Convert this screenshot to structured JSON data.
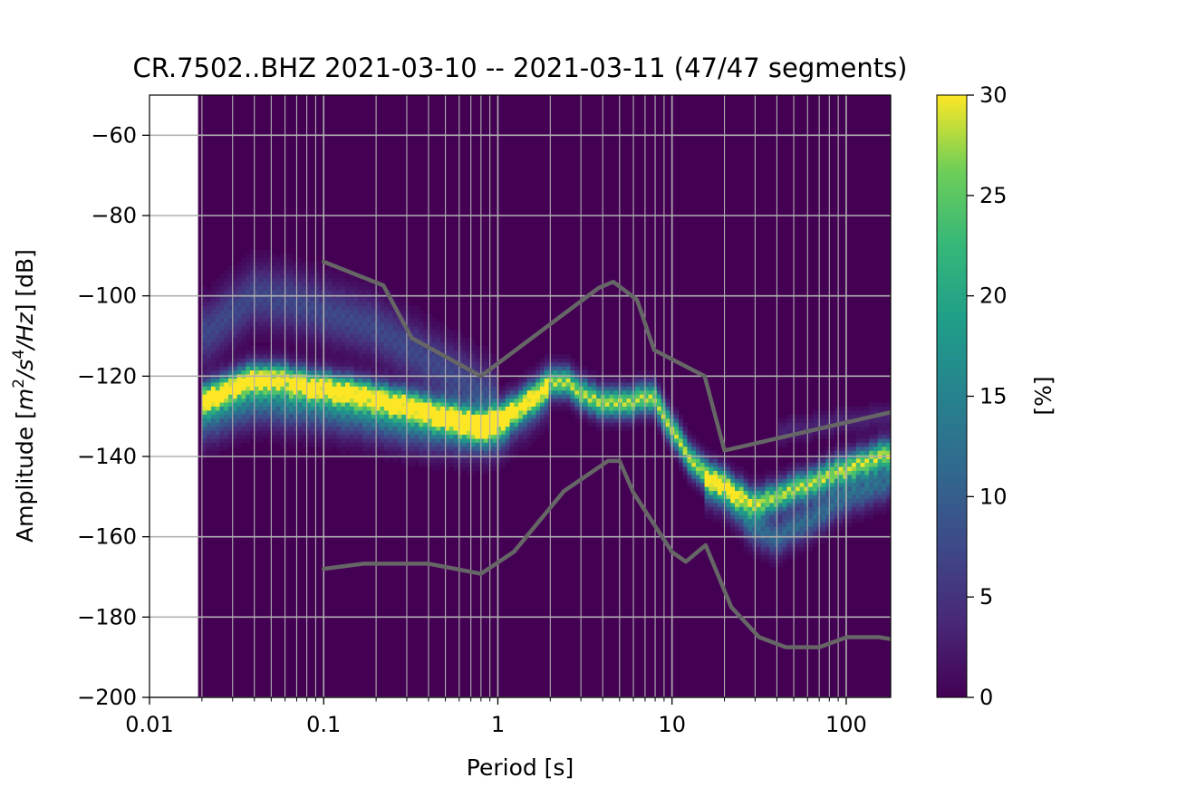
{
  "chart_data": {
    "type": "heatmap",
    "title": "CR.7502..BHZ   2021-03-10 -- 2021-03-11  (47/47 segments)",
    "xlabel": "Period [s]",
    "ylabel": "Amplitude [m²/s⁴/Hz] [dB]",
    "ylabel_parts": {
      "prefix": "Amplitude [",
      "m": "m",
      "exp2": "2",
      "slash_s": "/s",
      "exp4": "4",
      "hz": "/Hz",
      "suffix": "] [dB]"
    },
    "x_scale": "log",
    "xlim": [
      0.01,
      180
    ],
    "ylim": [
      -200,
      -50
    ],
    "x_ticks": [
      0.01,
      0.1,
      1,
      10,
      100
    ],
    "x_tick_labels": [
      "0.01",
      "0.1",
      "1",
      "10",
      "100"
    ],
    "y_ticks": [
      -200,
      -180,
      -160,
      -140,
      -120,
      -100,
      -80,
      -60
    ],
    "y_tick_labels": [
      "−200",
      "−180",
      "−160",
      "−140",
      "−120",
      "−100",
      "−80",
      "−60"
    ],
    "grid": true,
    "data_period_start": 0.019,
    "colorbar": {
      "label": "[%]",
      "range": [
        0,
        30
      ],
      "ticks": [
        0,
        5,
        10,
        15,
        20,
        25,
        30
      ],
      "tick_labels": [
        "0",
        "5",
        "10",
        "15",
        "20",
        "25",
        "30"
      ],
      "colormap": "viridis"
    },
    "colors": {
      "background": "#440154",
      "grid": "#b0b0b0",
      "noise_model": "#666666"
    },
    "density_tracks": [
      {
        "name": "main",
        "points": [
          [
            0.02,
            -126
          ],
          [
            0.035,
            -121
          ],
          [
            0.05,
            -120
          ],
          [
            0.08,
            -122
          ],
          [
            0.15,
            -124
          ],
          [
            0.3,
            -127
          ],
          [
            0.5,
            -130
          ],
          [
            0.8,
            -133
          ],
          [
            1.2,
            -129
          ],
          [
            2,
            -122
          ],
          [
            2.4,
            -121
          ],
          [
            3,
            -124
          ],
          [
            4,
            -127
          ],
          [
            5,
            -127
          ],
          [
            6,
            -126
          ],
          [
            8,
            -126
          ],
          [
            10,
            -133
          ],
          [
            12,
            -139
          ],
          [
            15,
            -144
          ],
          [
            20,
            -147
          ],
          [
            30,
            -152
          ],
          [
            40,
            -150
          ],
          [
            60,
            -147
          ],
          [
            100,
            -143
          ],
          [
            180,
            -139
          ]
        ],
        "width": 2.5,
        "peak": 26
      },
      {
        "name": "upper",
        "points": [
          [
            0.02,
            -110
          ],
          [
            0.03,
            -104
          ],
          [
            0.04,
            -100
          ],
          [
            0.06,
            -101
          ],
          [
            0.1,
            -104
          ],
          [
            0.2,
            -108
          ],
          [
            0.4,
            -116
          ],
          [
            0.7,
            -122
          ],
          [
            1,
            -126
          ]
        ],
        "width": 5,
        "peak": 7
      },
      {
        "name": "middle",
        "points": [
          [
            0.02,
            -128
          ],
          [
            0.04,
            -124
          ],
          [
            0.08,
            -125
          ],
          [
            0.15,
            -127
          ],
          [
            0.3,
            -130
          ],
          [
            0.5,
            -131
          ],
          [
            1,
            -133
          ],
          [
            1.5,
            -128
          ],
          [
            2,
            -123
          ]
        ],
        "width": 4,
        "peak": 9
      },
      {
        "name": "lower",
        "points": [
          [
            0.02,
            -132
          ],
          [
            0.04,
            -127
          ],
          [
            0.1,
            -129
          ],
          [
            0.2,
            -131
          ],
          [
            0.4,
            -134
          ],
          [
            0.8,
            -135
          ],
          [
            1.2,
            -132
          ]
        ],
        "width": 4,
        "peak": 6
      },
      {
        "name": "low-branch",
        "points": [
          [
            15,
            -147
          ],
          [
            20,
            -150
          ],
          [
            30,
            -158
          ],
          [
            40,
            -160
          ],
          [
            60,
            -156
          ],
          [
            100,
            -150
          ],
          [
            180,
            -146
          ]
        ],
        "width": 3,
        "peak": 11
      },
      {
        "name": "faint-high",
        "points": [
          [
            40,
            -134
          ],
          [
            100,
            -131
          ],
          [
            180,
            -130
          ]
        ],
        "width": 2,
        "peak": 3
      }
    ],
    "series": [
      {
        "name": "NHNM",
        "points": [
          [
            0.1,
            -91.5
          ],
          [
            0.22,
            -97.4
          ],
          [
            0.32,
            -110.5
          ],
          [
            0.8,
            -120
          ],
          [
            3.8,
            -98
          ],
          [
            4.6,
            -96.5
          ],
          [
            6.3,
            -101
          ],
          [
            7.9,
            -113.5
          ],
          [
            15.4,
            -120
          ],
          [
            20,
            -138.5
          ],
          [
            180,
            -129
          ]
        ]
      },
      {
        "name": "NLNM",
        "points": [
          [
            0.1,
            -168
          ],
          [
            0.17,
            -166.7
          ],
          [
            0.4,
            -166.7
          ],
          [
            0.8,
            -169.2
          ],
          [
            1.24,
            -163.7
          ],
          [
            2.4,
            -148.6
          ],
          [
            4.3,
            -141.1
          ],
          [
            5,
            -141.1
          ],
          [
            6,
            -149
          ],
          [
            10,
            -163.8
          ],
          [
            12,
            -166.2
          ],
          [
            15.6,
            -162.1
          ],
          [
            21.9,
            -177.5
          ],
          [
            31.6,
            -185
          ],
          [
            45,
            -187.5
          ],
          [
            70,
            -187.5
          ],
          [
            101,
            -185
          ],
          [
            154,
            -185
          ],
          [
            180,
            -185.5
          ]
        ]
      }
    ]
  }
}
